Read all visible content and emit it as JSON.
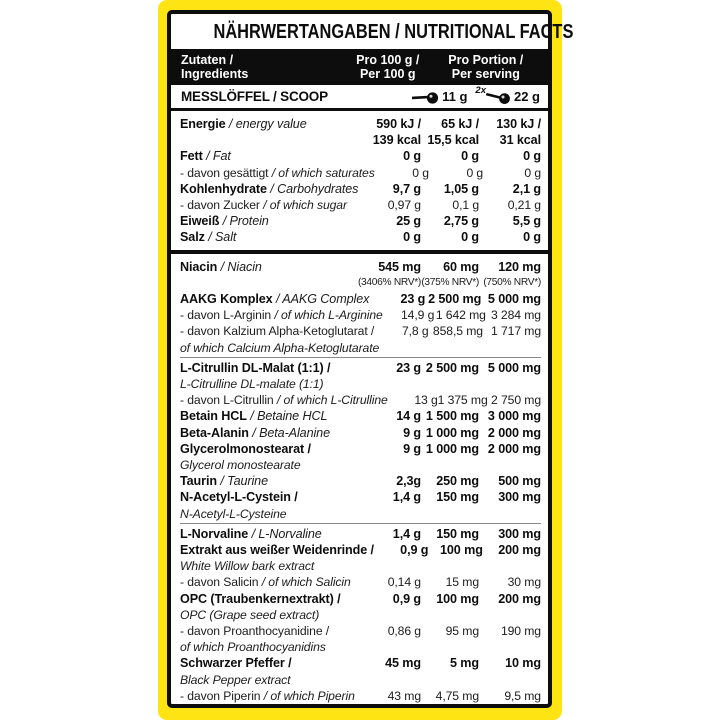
{
  "colors": {
    "band_yellow": "#ffe414",
    "label_bg": "#ffffff",
    "border_black": "#0d0d0d",
    "header_bar_bg": "#0d0d0d",
    "header_bar_text": "#ffffff"
  },
  "icons": {
    "scoop": "scoop-icon"
  },
  "label": {
    "title": "NÄHRWERTANGABEN / NUTRITIONAL FACTS",
    "header": {
      "ingredients_de": "Zutaten /",
      "ingredients_en": "Ingredients",
      "per100_l1": "Pro 100 g /",
      "per100_l2": "Per 100 g",
      "portion_l1": "Pro Portion /",
      "portion_l2": "Per serving"
    },
    "scoop": {
      "label": "MESSLÖFFEL / SCOOP",
      "scoop1_amount": "11 g",
      "scoop2_multiplier": "2x",
      "scoop2_amount": "22 g"
    },
    "macros": [
      {
        "type": "main",
        "de": "Energie",
        "en": " / energy value",
        "values": [
          "590 kJ /",
          "65 kJ /",
          "130 kJ /"
        ],
        "values2": [
          "139 kcal",
          "15,5 kcal",
          "31 kcal"
        ]
      },
      {
        "type": "main",
        "de": "Fett",
        "en": " / Fat",
        "values": [
          "0 g",
          "0 g",
          "0 g"
        ]
      },
      {
        "type": "sub",
        "de": "- davon gesättigt",
        "en": " / of which saturates",
        "values": [
          "0 g",
          "0 g",
          "0 g"
        ]
      },
      {
        "type": "main",
        "de": "Kohlenhydrate",
        "en": " / Carbohydrates",
        "values": [
          "9,7 g",
          "1,05 g",
          "2,1 g"
        ]
      },
      {
        "type": "sub",
        "de": "- davon Zucker",
        "en": " / of which sugar",
        "values": [
          "0,97 g",
          "0,1 g",
          "0,21 g"
        ]
      },
      {
        "type": "main",
        "de": "Eiweiß",
        "en": " / Protein",
        "values": [
          "25 g",
          "2,75 g",
          "5,5 g"
        ]
      },
      {
        "type": "main",
        "de": "Salz",
        "en": " / Salt",
        "values": [
          "0 g",
          "0 g",
          "0 g"
        ]
      }
    ],
    "actives": [
      {
        "type": "main",
        "de": "Niacin",
        "en": " / Niacin",
        "values": [
          "545 mg",
          "60 mg",
          "120 mg"
        ],
        "values2": [
          "(3406% NRV*)",
          "(375% NRV*)",
          "(750% NRV*)"
        ],
        "v2_small": true
      },
      {
        "type": "main",
        "de": "AAKG Komplex",
        "en": " / AAKG Complex",
        "values": [
          "23 g",
          "2 500 mg",
          "5 000 mg"
        ]
      },
      {
        "type": "sub",
        "de": "- davon L-Arginin",
        "en": " / of which L-Arginine",
        "values": [
          "14,9 g",
          "1 642 mg",
          "3 284 mg"
        ]
      },
      {
        "type": "sub",
        "de": "- davon Kalzium Alpha-Ketoglutarat /",
        "en": "",
        "values": [
          "7,8 g",
          "858,5 mg",
          "1 717 mg"
        ]
      },
      {
        "type": "cont",
        "de": "",
        "en": "of which Calcium Alpha-Ketoglutarate"
      },
      {
        "type": "main",
        "de": "L-Citrullin DL-Malat (1:1) /",
        "en": "",
        "values": [
          "23 g",
          "2 500 mg",
          "5 000 mg"
        ],
        "divider_before": true
      },
      {
        "type": "cont",
        "de": "",
        "en": "L-Citrulline DL-malate (1:1)"
      },
      {
        "type": "sub",
        "de": "- davon L-Citrullin",
        "en": " / of which L-Citrulline",
        "values": [
          "13 g",
          "1 375 mg",
          "2 750 mg"
        ]
      },
      {
        "type": "main",
        "de": "Betain HCL",
        "en": " / Betaine HCL",
        "values": [
          "14 g",
          "1 500 mg",
          "3 000 mg"
        ]
      },
      {
        "type": "main",
        "de": "Beta-Alanin",
        "en": " / Beta-Alanine",
        "values": [
          "9 g",
          "1 000 mg",
          "2 000 mg"
        ]
      },
      {
        "type": "main",
        "de": "Glycerolmonostearat /",
        "en": "",
        "values": [
          "9 g",
          "1 000 mg",
          "2 000 mg"
        ]
      },
      {
        "type": "cont",
        "de": "",
        "en": "Glycerol monostearate"
      },
      {
        "type": "main",
        "de": "Taurin",
        "en": " / Taurine",
        "values": [
          "2,3g",
          "250 mg",
          "500 mg"
        ]
      },
      {
        "type": "main",
        "de": "N-Acetyl-L-Cystein /",
        "en": "",
        "values": [
          "1,4 g",
          "150 mg",
          "300 mg"
        ]
      },
      {
        "type": "cont",
        "de": "",
        "en": "N-Acetyl-L-Cysteine"
      },
      {
        "type": "main",
        "de": "L-Norvaline",
        "en": " / L-Norvaline",
        "values": [
          "1,4 g",
          "150 mg",
          "300 mg"
        ],
        "divider_before": true
      },
      {
        "type": "main",
        "de": "Extrakt aus weißer Weidenrinde /",
        "en": "",
        "values": [
          "0,9 g",
          "100 mg",
          "200 mg"
        ]
      },
      {
        "type": "cont",
        "de": "",
        "en": "White Willow bark extract"
      },
      {
        "type": "sub",
        "de": "- davon Salicin",
        "en": " / of which Salicin",
        "values": [
          "0,14 g",
          "15 mg",
          "30 mg"
        ]
      },
      {
        "type": "main",
        "de": "OPC (Traubenkernextrakt) /",
        "en": "",
        "values": [
          "0,9 g",
          "100 mg",
          "200 mg"
        ]
      },
      {
        "type": "cont",
        "de": "",
        "en": "OPC (Grape seed extract)"
      },
      {
        "type": "sub",
        "de": "- davon Proanthocyanidine /",
        "en": "",
        "values": [
          "0,86 g",
          "95 mg",
          "190 mg"
        ]
      },
      {
        "type": "cont",
        "de": "",
        "en": "of which Proanthocyanidins"
      },
      {
        "type": "main",
        "de": "Schwarzer Pfeffer /",
        "en": "",
        "values": [
          "45 mg",
          "5 mg",
          "10 mg"
        ]
      },
      {
        "type": "cont",
        "de": "",
        "en": "Black Pepper extract"
      },
      {
        "type": "sub",
        "de": "- davon Piperin",
        "en": " / of which Piperin",
        "values": [
          "43 mg",
          "4,75 mg",
          "9,5 mg"
        ]
      }
    ]
  }
}
